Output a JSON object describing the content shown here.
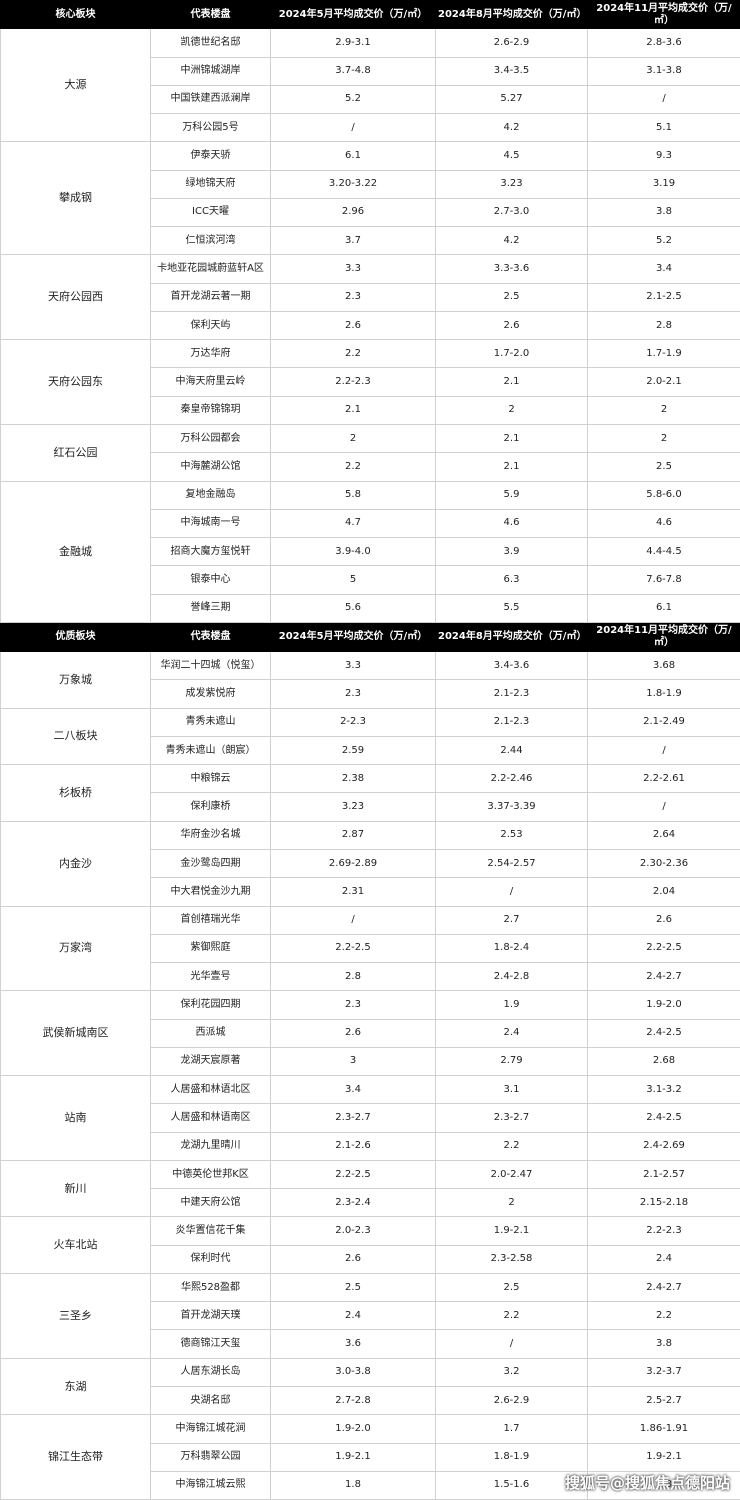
{
  "tables": [
    {
      "header": [
        "核心板块",
        "代表楼盘",
        "2024年5月平均成交价（万/㎡）",
        "2024年8月平均成交价（万/㎡）",
        "2024年11月平均成交价（万/㎡）"
      ],
      "groups": [
        {
          "block": "大源",
          "rows": [
            [
              "凯德世纪名邸",
              "2.9-3.1",
              "2.6-2.9",
              "2.8-3.6"
            ],
            [
              "中洲锦城湖岸",
              "3.7-4.8",
              "3.4-3.5",
              "3.1-3.8"
            ],
            [
              "中国铁建西派澜岸",
              "5.2",
              "5.27",
              "/"
            ],
            [
              "万科公园5号",
              "/",
              "4.2",
              "5.1"
            ]
          ]
        },
        {
          "block": "攀成钢",
          "rows": [
            [
              "伊泰天骄",
              "6.1",
              "4.5",
              "9.3"
            ],
            [
              "绿地锦天府",
              "3.20-3.22",
              "3.23",
              "3.19"
            ],
            [
              "ICC天曜",
              "2.96",
              "2.7-3.0",
              "3.8"
            ],
            [
              "仁恒滨河湾",
              "3.7",
              "4.2",
              "5.2"
            ]
          ]
        },
        {
          "block": "天府公园西",
          "rows": [
            [
              "卡地亚花园城蔚蓝轩A区",
              "3.3",
              "3.3-3.6",
              "3.4"
            ],
            [
              "首开龙湖云著一期",
              "2.3",
              "2.5",
              "2.1-2.5"
            ],
            [
              "保利天屿",
              "2.6",
              "2.6",
              "2.8"
            ]
          ]
        },
        {
          "block": "天府公园东",
          "rows": [
            [
              "万达华府",
              "2.2",
              "1.7-2.0",
              "1.7-1.9"
            ],
            [
              "中海天府里云岭",
              "2.2-2.3",
              "2.1",
              "2.0-2.1"
            ],
            [
              "秦皇帝锦锦玥",
              "2.1",
              "2",
              "2"
            ]
          ]
        },
        {
          "block": "红石公园",
          "rows": [
            [
              "万科公园都会",
              "2",
              "2.1",
              "2"
            ],
            [
              "中海麓湖公馆",
              "2.2",
              "2.1",
              "2.5"
            ]
          ]
        },
        {
          "block": "金融城",
          "rows": [
            [
              "复地金融岛",
              "5.8",
              "5.9",
              "5.8-6.0"
            ],
            [
              "中海城南一号",
              "4.7",
              "4.6",
              "4.6"
            ],
            [
              "招商大魔方玺悦轩",
              "3.9-4.0",
              "3.9",
              "4.4-4.5"
            ],
            [
              "银泰中心",
              "5",
              "6.3",
              "7.6-7.8"
            ],
            [
              "誉峰三期",
              "5.6",
              "5.5",
              "6.1"
            ]
          ]
        }
      ]
    },
    {
      "header": [
        "优质板块",
        "代表楼盘",
        "2024年5月平均成交价（万/㎡）",
        "2024年8月平均成交价（万/㎡）",
        "2024年11月平均成交价（万/㎡）"
      ],
      "groups": [
        {
          "block": "万象城",
          "rows": [
            [
              "华润二十四城（悦玺）",
              "3.3",
              "3.4-3.6",
              "3.68"
            ],
            [
              "成发紫悦府",
              "2.3",
              "2.1-2.3",
              "1.8-1.9"
            ]
          ]
        },
        {
          "block": "二八板块",
          "rows": [
            [
              "青秀未遮山",
              "2-2.3",
              "2.1-2.3",
              "2.1-2.49"
            ],
            [
              "青秀未遮山（朗宸）",
              "2.59",
              "2.44",
              "/"
            ]
          ]
        },
        {
          "block": "杉板桥",
          "rows": [
            [
              "中粮锦云",
              "2.38",
              "2.2-2.46",
              "2.2-2.61"
            ],
            [
              "保利康桥",
              "3.23",
              "3.37-3.39",
              "/"
            ]
          ]
        },
        {
          "block": "内金沙",
          "rows": [
            [
              "华府金沙名城",
              "2.87",
              "2.53",
              "2.64"
            ],
            [
              "金沙鹭岛四期",
              "2.69-2.89",
              "2.54-2.57",
              "2.30-2.36"
            ],
            [
              "中大君悦金沙九期",
              "2.31",
              "/",
              "2.04"
            ]
          ]
        },
        {
          "block": "万家湾",
          "rows": [
            [
              "首创禧瑞光华",
              "/",
              "2.7",
              "2.6"
            ],
            [
              "紫御熙庭",
              "2.2-2.5",
              "1.8-2.4",
              "2.2-2.5"
            ],
            [
              "光华壹号",
              "2.8",
              "2.4-2.8",
              "2.4-2.7"
            ]
          ]
        },
        {
          "block": "武侯新城南区",
          "rows": [
            [
              "保利花园四期",
              "2.3",
              "1.9",
              "1.9-2.0"
            ],
            [
              "西派城",
              "2.6",
              "2.4",
              "2.4-2.5"
            ],
            [
              "龙湖天宸原著",
              "3",
              "2.79",
              "2.68"
            ]
          ]
        },
        {
          "block": "站南",
          "rows": [
            [
              "人居盛和林语北区",
              "3.4",
              "3.1",
              "3.1-3.2"
            ],
            [
              "人居盛和林语南区",
              "2.3-2.7",
              "2.3-2.7",
              "2.4-2.5"
            ],
            [
              "龙湖九里晴川",
              "2.1-2.6",
              "2.2",
              "2.4-2.69"
            ]
          ]
        },
        {
          "block": "新川",
          "rows": [
            [
              "中德英伦世邦K区",
              "2.2-2.5",
              "2.0-2.47",
              "2.1-2.57"
            ],
            [
              "中建天府公馆",
              "2.3-2.4",
              "2",
              "2.15-2.18"
            ]
          ]
        },
        {
          "block": "火车北站",
          "rows": [
            [
              "炎华置信花千集",
              "2.0-2.3",
              "1.9-2.1",
              "2.2-2.3"
            ],
            [
              "保利时代",
              "2.6",
              "2.3-2.58",
              "2.4"
            ]
          ]
        },
        {
          "block": "三圣乡",
          "rows": [
            [
              "华熙528盈都",
              "2.5",
              "2.5",
              "2.4-2.7"
            ],
            [
              "首开龙湖天璞",
              "2.4",
              "2.2",
              "2.2"
            ],
            [
              "德商锦江天玺",
              "3.6",
              "/",
              "3.8"
            ]
          ]
        },
        {
          "block": "东湖",
          "rows": [
            [
              "人居东湖长岛",
              "3.0-3.8",
              "3.2",
              "3.2-3.7"
            ],
            [
              "央湖名邸",
              "2.7-2.8",
              "2.6-2.9",
              "2.5-2.7"
            ]
          ]
        },
        {
          "block": "锦江生态带",
          "rows": [
            [
              "中海锦江城花涧",
              "1.9-2.0",
              "1.7",
              "1.86-1.91"
            ],
            [
              "万科翡翠公园",
              "1.9-2.1",
              "1.8-1.9",
              "1.9-2.1"
            ],
            [
              "中海锦江城云熙",
              "1.8",
              "1.5-1.6",
              "1.8"
            ]
          ]
        }
      ]
    }
  ],
  "watermark": "搜狐号@搜狐焦点德阳站"
}
